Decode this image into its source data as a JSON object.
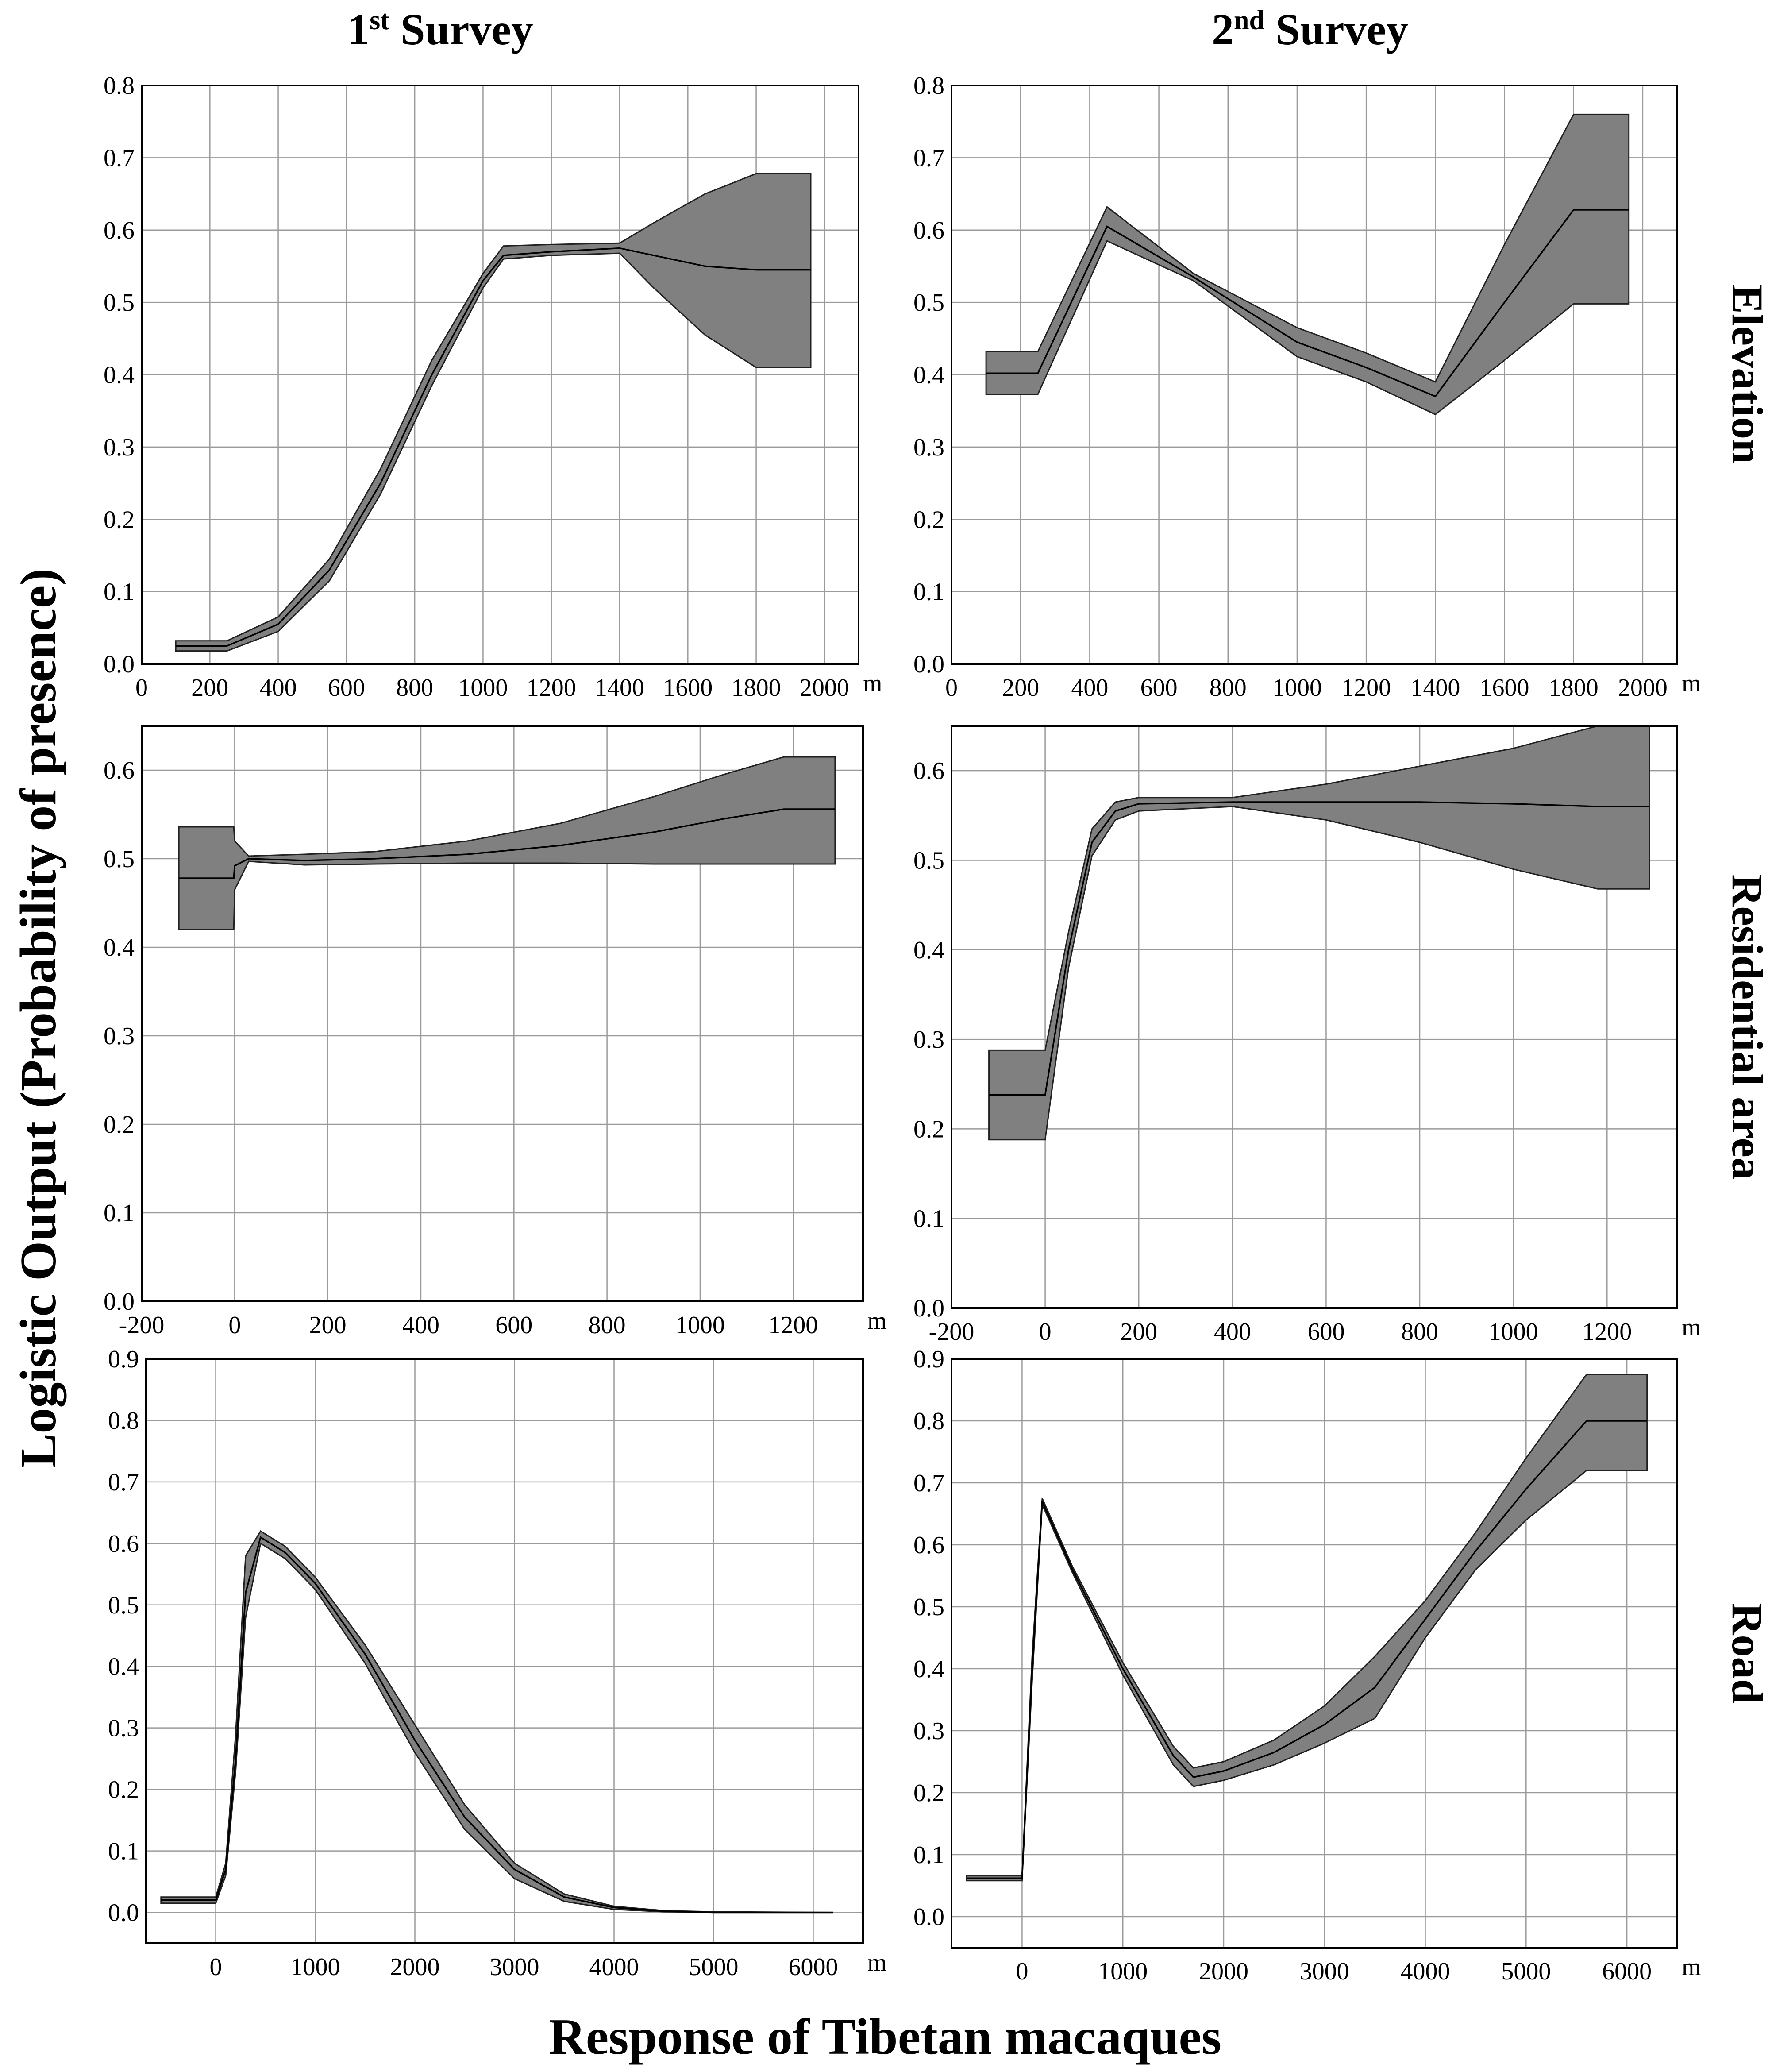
{
  "figure": {
    "col_titles": [
      {
        "base": "1",
        "sup": "st",
        "rest": " Survey"
      },
      {
        "base": "2",
        "sup": "nd",
        "rest": " Survey"
      }
    ],
    "row_titles": [
      "Elevation",
      "Residential area",
      "Road"
    ],
    "ylabel": "Logistic Output (Probability of presence)",
    "xlabel": "Response of Tibetan macaques",
    "unit": "m"
  },
  "chart_data": [
    {
      "id": "elev-1",
      "type": "area",
      "title": "Elevation — 1st Survey",
      "xlim": [
        0,
        2100
      ],
      "ylim": [
        0,
        0.8
      ],
      "xticks": [
        0,
        200,
        400,
        600,
        800,
        1000,
        1200,
        1400,
        1600,
        1800,
        2000
      ],
      "yticks": [
        0.0,
        0.1,
        0.2,
        0.3,
        0.4,
        0.5,
        0.6,
        0.7,
        0.8
      ],
      "xtick_labels": [
        "0",
        "200",
        "400",
        "600",
        "800",
        "1000",
        "1200",
        "1400",
        "1600",
        "1800",
        "2000"
      ],
      "ytick_labels": [
        "0.0",
        "0.1",
        "0.2",
        "0.3",
        "0.4",
        "0.5",
        "0.6",
        "0.7",
        "0.8"
      ],
      "x": [
        100,
        250,
        400,
        550,
        700,
        850,
        1000,
        1060,
        1200,
        1400,
        1500,
        1650,
        1800,
        1960
      ],
      "mean": [
        0.025,
        0.025,
        0.055,
        0.13,
        0.25,
        0.4,
        0.53,
        0.565,
        0.57,
        0.575,
        0.565,
        0.55,
        0.545,
        0.545
      ],
      "upper": [
        0.032,
        0.032,
        0.065,
        0.145,
        0.27,
        0.42,
        0.54,
        0.578,
        0.58,
        0.582,
        0.61,
        0.65,
        0.678,
        0.678
      ],
      "lower": [
        0.018,
        0.018,
        0.045,
        0.115,
        0.235,
        0.385,
        0.52,
        0.56,
        0.565,
        0.568,
        0.52,
        0.455,
        0.41,
        0.41
      ]
    },
    {
      "id": "elev-2",
      "type": "area",
      "title": "Elevation — 2nd Survey",
      "xlim": [
        0,
        2100
      ],
      "ylim": [
        0,
        0.8
      ],
      "xticks": [
        0,
        200,
        400,
        600,
        800,
        1000,
        1200,
        1400,
        1600,
        1800,
        2000
      ],
      "yticks": [
        0.0,
        0.1,
        0.2,
        0.3,
        0.4,
        0.5,
        0.6,
        0.7,
        0.8
      ],
      "xtick_labels": [
        "0",
        "200",
        "400",
        "600",
        "800",
        "1000",
        "1200",
        "1400",
        "1600",
        "1800",
        "2000"
      ],
      "ytick_labels": [
        "0.0",
        "0.1",
        "0.2",
        "0.3",
        "0.4",
        "0.5",
        "0.6",
        "0.7",
        "0.8"
      ],
      "x": [
        100,
        250,
        450,
        700,
        1000,
        1200,
        1400,
        1600,
        1800,
        1960
      ],
      "mean": [
        0.402,
        0.402,
        0.605,
        0.535,
        0.445,
        0.41,
        0.37,
        0.5,
        0.628,
        0.628
      ],
      "upper": [
        0.432,
        0.432,
        0.632,
        0.54,
        0.465,
        0.43,
        0.39,
        0.58,
        0.76,
        0.76
      ],
      "lower": [
        0.373,
        0.373,
        0.585,
        0.53,
        0.425,
        0.39,
        0.345,
        0.42,
        0.498,
        0.498
      ]
    },
    {
      "id": "res-1",
      "type": "area",
      "title": "Residential area — 1st Survey",
      "xlim": [
        -200,
        1350
      ],
      "ylim": [
        0,
        0.65
      ],
      "xticks": [
        -200,
        0,
        200,
        400,
        600,
        800,
        1000,
        1200
      ],
      "yticks": [
        0.0,
        0.1,
        0.2,
        0.3,
        0.4,
        0.5,
        0.6
      ],
      "xtick_labels": [
        "-200",
        "0",
        "200",
        "400",
        "600",
        "800",
        "1000",
        "1200"
      ],
      "ytick_labels": [
        "0.0",
        "0.1",
        "0.2",
        "0.3",
        "0.4",
        "0.5",
        "0.6"
      ],
      "x": [
        -120,
        -2,
        0,
        30,
        150,
        300,
        500,
        700,
        900,
        1050,
        1180,
        1290
      ],
      "mean": [
        0.478,
        0.478,
        0.492,
        0.5,
        0.498,
        0.5,
        0.505,
        0.515,
        0.53,
        0.545,
        0.556,
        0.556
      ],
      "upper": [
        0.536,
        0.536,
        0.52,
        0.503,
        0.505,
        0.508,
        0.52,
        0.54,
        0.57,
        0.595,
        0.615,
        0.615
      ],
      "lower": [
        0.42,
        0.42,
        0.465,
        0.497,
        0.493,
        0.494,
        0.495,
        0.495,
        0.494,
        0.494,
        0.494,
        0.494
      ]
    },
    {
      "id": "res-2",
      "type": "area",
      "title": "Residential area — 2nd Survey",
      "xlim": [
        -200,
        1350
      ],
      "ylim": [
        0,
        0.65
      ],
      "xticks": [
        -200,
        0,
        200,
        400,
        600,
        800,
        1000,
        1200
      ],
      "yticks": [
        0.0,
        0.1,
        0.2,
        0.3,
        0.4,
        0.5,
        0.6
      ],
      "xtick_labels": [
        "-200",
        "0",
        "200",
        "400",
        "600",
        "800",
        "1000",
        "1200"
      ],
      "ytick_labels": [
        "0.0",
        "0.1",
        "0.2",
        "0.3",
        "0.4",
        "0.5",
        "0.6"
      ],
      "x": [
        -120,
        0,
        50,
        100,
        150,
        200,
        400,
        600,
        800,
        1000,
        1180,
        1290
      ],
      "mean": [
        0.238,
        0.238,
        0.4,
        0.52,
        0.555,
        0.563,
        0.565,
        0.565,
        0.565,
        0.563,
        0.56,
        0.56
      ],
      "upper": [
        0.288,
        0.288,
        0.42,
        0.535,
        0.565,
        0.57,
        0.57,
        0.585,
        0.605,
        0.625,
        0.65,
        0.65
      ],
      "lower": [
        0.188,
        0.188,
        0.38,
        0.505,
        0.545,
        0.555,
        0.56,
        0.545,
        0.52,
        0.49,
        0.468,
        0.468
      ]
    },
    {
      "id": "road-1",
      "type": "area",
      "title": "Road — 1st Survey",
      "xlim": [
        -700,
        6500
      ],
      "ylim": [
        -0.05,
        0.9
      ],
      "xticks": [
        0,
        1000,
        2000,
        3000,
        4000,
        5000,
        6000
      ],
      "yticks": [
        0.0,
        0.1,
        0.2,
        0.3,
        0.4,
        0.5,
        0.6,
        0.7,
        0.8,
        0.9
      ],
      "xtick_labels": [
        "0",
        "1000",
        "2000",
        "3000",
        "4000",
        "5000",
        "6000"
      ],
      "ytick_labels": [
        "0.0",
        "0.1",
        "0.2",
        "0.3",
        "0.4",
        "0.5",
        "0.6",
        "0.7",
        "0.8",
        "0.9"
      ],
      "x": [
        -550,
        0,
        100,
        200,
        300,
        450,
        700,
        1000,
        1500,
        2000,
        2500,
        3000,
        3500,
        4000,
        4500,
        5000,
        6200
      ],
      "mean": [
        0.02,
        0.02,
        0.07,
        0.25,
        0.52,
        0.61,
        0.585,
        0.535,
        0.42,
        0.28,
        0.155,
        0.07,
        0.025,
        0.008,
        0.002,
        0.0,
        0.0
      ],
      "upper": [
        0.025,
        0.025,
        0.08,
        0.29,
        0.58,
        0.62,
        0.595,
        0.545,
        0.435,
        0.305,
        0.175,
        0.08,
        0.03,
        0.01,
        0.003,
        0.001,
        0.0
      ],
      "lower": [
        0.015,
        0.015,
        0.06,
        0.23,
        0.48,
        0.6,
        0.575,
        0.525,
        0.405,
        0.26,
        0.135,
        0.055,
        0.018,
        0.005,
        0.001,
        0.0,
        0.0
      ]
    },
    {
      "id": "road-2",
      "type": "area",
      "title": "Road — 2nd Survey",
      "xlim": [
        -700,
        6500
      ],
      "ylim": [
        -0.05,
        0.9
      ],
      "xticks": [
        0,
        1000,
        2000,
        3000,
        4000,
        5000,
        6000
      ],
      "yticks": [
        0.0,
        0.1,
        0.2,
        0.3,
        0.4,
        0.5,
        0.6,
        0.7,
        0.8,
        0.9
      ],
      "xtick_labels": [
        "0",
        "1000",
        "2000",
        "3000",
        "4000",
        "5000",
        "6000"
      ],
      "ytick_labels": [
        "0.0",
        "0.1",
        "0.2",
        "0.3",
        "0.4",
        "0.5",
        "0.6",
        "0.7",
        "0.8",
        "0.9"
      ],
      "x": [
        -550,
        0,
        100,
        200,
        500,
        1000,
        1500,
        1700,
        2000,
        2500,
        3000,
        3500,
        4000,
        4500,
        5000,
        5600,
        6200
      ],
      "mean": [
        0.062,
        0.062,
        0.4,
        0.67,
        0.56,
        0.4,
        0.26,
        0.225,
        0.235,
        0.265,
        0.31,
        0.37,
        0.48,
        0.59,
        0.69,
        0.8,
        0.8
      ],
      "upper": [
        0.066,
        0.066,
        0.42,
        0.675,
        0.565,
        0.41,
        0.275,
        0.24,
        0.25,
        0.285,
        0.34,
        0.42,
        0.51,
        0.62,
        0.74,
        0.875,
        0.875
      ],
      "lower": [
        0.058,
        0.058,
        0.38,
        0.665,
        0.555,
        0.39,
        0.245,
        0.21,
        0.22,
        0.245,
        0.28,
        0.32,
        0.45,
        0.56,
        0.64,
        0.72,
        0.72
      ]
    }
  ]
}
